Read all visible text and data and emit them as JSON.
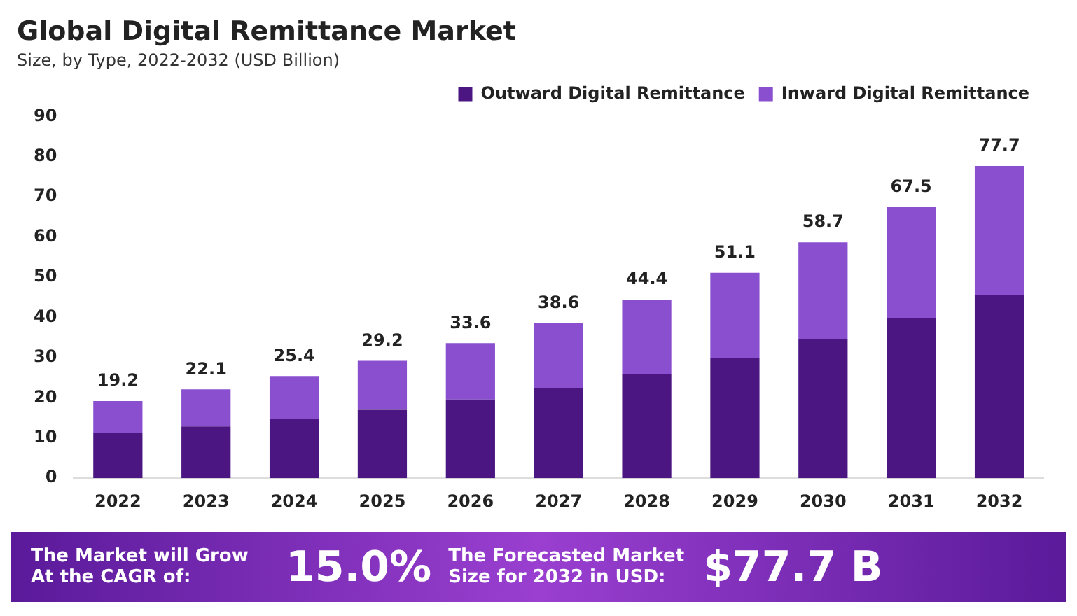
{
  "chart_data": {
    "type": "bar",
    "title": "Global Digital Remittance Market",
    "subtitle": "Size, by Type, 2022-2032 (USD Billion)",
    "categories": [
      "2022",
      "2023",
      "2024",
      "2025",
      "2026",
      "2027",
      "2028",
      "2029",
      "2030",
      "2031",
      "2032"
    ],
    "series": [
      {
        "name": "Outward Digital Remittance",
        "color": "#4b1582",
        "values": [
          11.3,
          12.9,
          14.8,
          17.0,
          19.6,
          22.5,
          26.0,
          30.0,
          34.5,
          39.8,
          45.6
        ]
      },
      {
        "name": "Inward Digital Remittance",
        "color": "#8a4fcf",
        "values": [
          7.9,
          9.2,
          10.6,
          12.2,
          14.0,
          16.1,
          18.4,
          21.1,
          24.2,
          27.7,
          32.1
        ]
      }
    ],
    "stacked": true,
    "totals": [
      "19.2",
      "22.1",
      "25.4",
      "29.2",
      "33.6",
      "38.6",
      "44.4",
      "51.1",
      "58.7",
      "67.5",
      "77.7"
    ],
    "ylim": [
      0,
      90
    ],
    "yticks": [
      0,
      10,
      20,
      30,
      40,
      50,
      60,
      70,
      80,
      90
    ],
    "grid": false,
    "legend": "top right",
    "annotations": [
      "The Market will Grow At the CAGR of:",
      "15.0%",
      "The Forecasted Market Size for 2032 in USD:",
      "$77.7 B"
    ]
  }
}
